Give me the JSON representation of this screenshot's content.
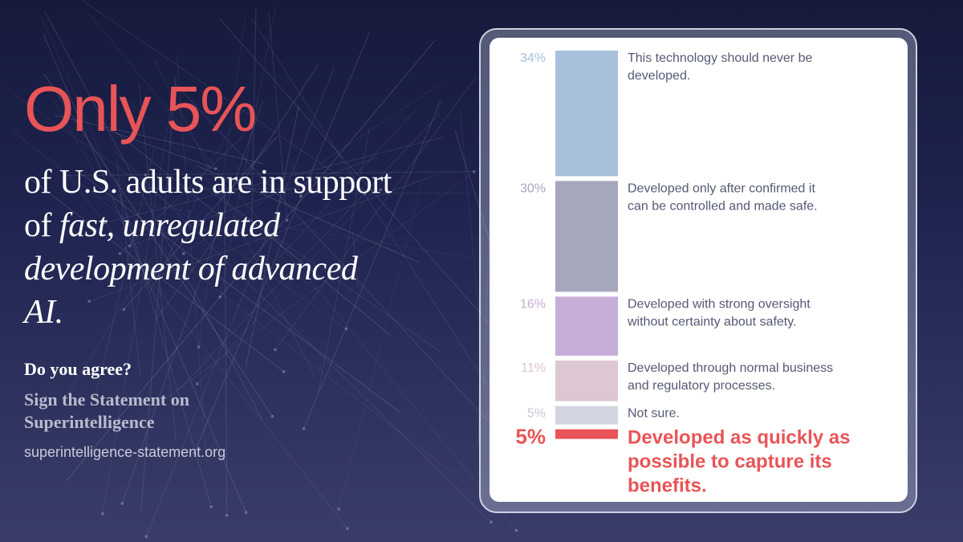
{
  "headline": "Only 5%",
  "subhead": {
    "part1": "of U.S. adults are in support of ",
    "italic": "fast, unregulated development of advanced AI."
  },
  "cta": {
    "question": "Do you agree?",
    "sign": "Sign the Statement on Superintelligence",
    "url": "superintelligence-statement.org"
  },
  "colors": {
    "accent": "#e85457",
    "background_top": "#161a3c",
    "background_bottom": "#3a3d6a",
    "label_text": "#565a75"
  },
  "chart_data": {
    "type": "bar",
    "orientation": "stacked-vertical",
    "title": "",
    "unit": "%",
    "categories": [
      "This technology should never be developed.",
      "Developed only after confirmed it can be controlled and made safe.",
      "Developed with strong oversight without certainty about safety.",
      "Developed through normal business and regulatory processes.",
      "Not sure.",
      "Developed as quickly as possible to capture its benefits."
    ],
    "value_labels": [
      "34%",
      "30%",
      "16%",
      "11%",
      "5%",
      "5%"
    ],
    "values": [
      34,
      30,
      16,
      11,
      5,
      5
    ],
    "colors": [
      "#a8c0dc",
      "#a5a7bc",
      "#c6aed9",
      "#dcc7d3",
      "#d3d5e0",
      "#e85457"
    ],
    "value_label_colors": [
      "#a8c0dc",
      "#a5a7bc",
      "#c6aed9",
      "#dcc7d3",
      "#c6c8d6",
      "#e85457"
    ],
    "highlight_index": 5,
    "label_lines": [
      [
        "This technology should never be",
        "developed."
      ],
      [
        "Developed only after confirmed it",
        "can be controlled and made safe."
      ],
      [
        "Developed with strong oversight",
        "without certainty about safety."
      ],
      [
        "Developed through normal business",
        "and regulatory processes."
      ],
      [
        "Not sure."
      ],
      [
        "Developed as quickly as",
        "possible to capture its",
        "benefits."
      ]
    ]
  }
}
